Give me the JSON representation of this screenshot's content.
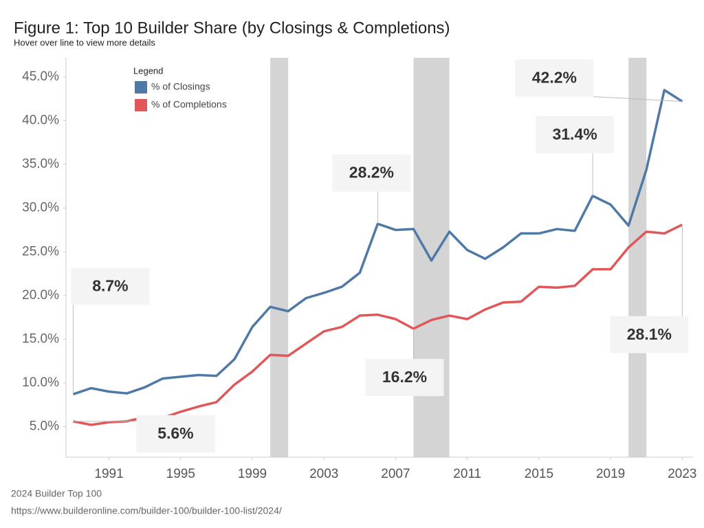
{
  "chart_data": {
    "type": "line",
    "title": "Figure 1: Top 10 Builder Share (by Closings & Completions)",
    "subtitle": "Hover over line to view more details",
    "legend_title": "Legend",
    "legend_position": "upper-left",
    "source": [
      "2024 Builder Top 100",
      "https://www.builderonline.com/builder-100/builder-100-list/2024/"
    ],
    "x": [
      1989,
      1990,
      1991,
      1992,
      1993,
      1994,
      1995,
      1996,
      1997,
      1998,
      1999,
      2000,
      2001,
      2002,
      2003,
      2004,
      2005,
      2006,
      2007,
      2008,
      2009,
      2010,
      2011,
      2012,
      2013,
      2014,
      2015,
      2016,
      2017,
      2018,
      2019,
      2020,
      2021,
      2022,
      2023
    ],
    "series": [
      {
        "name": "% of Closings",
        "color": "#4e79a7",
        "values": [
          8.7,
          9.4,
          9.0,
          8.8,
          9.5,
          10.5,
          10.7,
          10.9,
          10.8,
          12.7,
          16.4,
          18.7,
          18.2,
          19.7,
          20.3,
          21.0,
          22.6,
          28.2,
          27.5,
          27.6,
          24.0,
          27.3,
          25.2,
          24.2,
          25.5,
          27.1,
          27.1,
          27.6,
          27.4,
          31.4,
          30.4,
          28.0,
          34.4,
          43.5,
          42.2
        ],
        "value_labels": [
          "8.7%",
          null,
          null,
          null,
          null,
          null,
          null,
          null,
          null,
          null,
          null,
          null,
          null,
          null,
          null,
          null,
          null,
          "28.2%",
          null,
          null,
          null,
          null,
          null,
          null,
          null,
          null,
          null,
          null,
          null,
          "31.4%",
          null,
          null,
          null,
          null,
          "42.2%"
        ]
      },
      {
        "name": "% of Completions",
        "color": "#e15759",
        "values": [
          5.6,
          5.2,
          5.5,
          5.6,
          6.1,
          6.0,
          6.7,
          7.3,
          7.8,
          9.8,
          11.3,
          13.2,
          13.1,
          14.5,
          15.9,
          16.4,
          17.7,
          17.8,
          17.3,
          16.2,
          17.2,
          17.7,
          17.3,
          18.4,
          19.2,
          19.3,
          21.0,
          20.9,
          21.1,
          23.0,
          23.0,
          25.5,
          27.3,
          27.1,
          28.1
        ],
        "value_labels": [
          "5.6%",
          null,
          null,
          null,
          null,
          null,
          null,
          null,
          null,
          null,
          null,
          null,
          null,
          null,
          null,
          null,
          null,
          null,
          null,
          "16.2%",
          null,
          null,
          null,
          null,
          null,
          null,
          null,
          null,
          null,
          null,
          null,
          null,
          null,
          null,
          "28.1%"
        ]
      }
    ],
    "shaded_ranges": [
      [
        2000,
        2001
      ],
      [
        2008,
        2010
      ],
      [
        2020,
        2021
      ]
    ],
    "xlim": [
      1988.6,
      2023.6
    ],
    "xticks": [
      1991,
      1995,
      1999,
      2003,
      2007,
      2011,
      2015,
      2019,
      2023
    ],
    "ylim": [
      1.5,
      47.2
    ],
    "yticks": [
      {
        "value": 5,
        "label": "5.0%"
      },
      {
        "value": 10,
        "label": "10.0%"
      },
      {
        "value": 15,
        "label": "15.0%"
      },
      {
        "value": 20,
        "label": "20.0%"
      },
      {
        "value": 25,
        "label": "25.0%"
      },
      {
        "value": 30,
        "label": "30.0%"
      },
      {
        "value": 35,
        "label": "35.0%"
      },
      {
        "value": 40,
        "label": "40.0%"
      },
      {
        "value": 45,
        "label": "45.0%"
      }
    ],
    "grid": false
  }
}
